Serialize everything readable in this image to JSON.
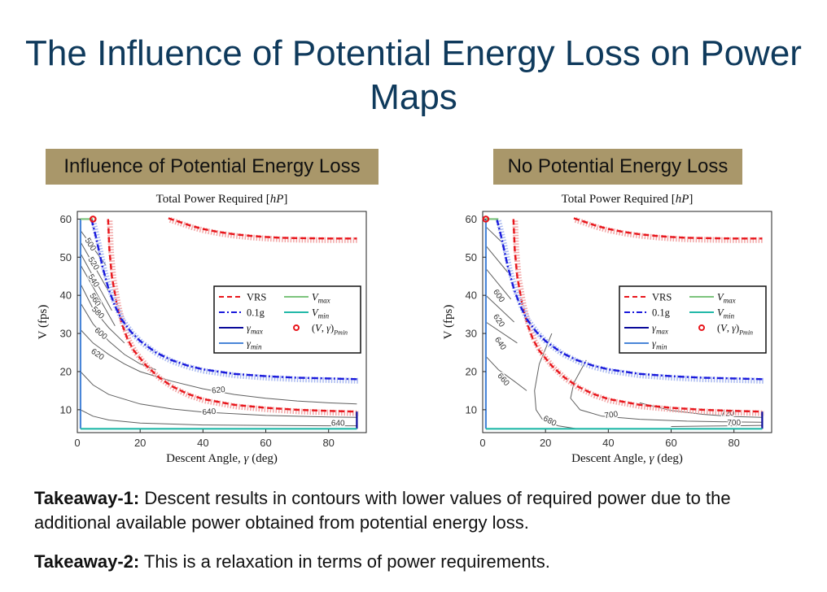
{
  "slide": {
    "title": "The Influence of Potential Energy Loss on Power Maps",
    "panel_headers": [
      "Influence of Potential Energy Loss",
      "No Potential Energy Loss"
    ],
    "header_color": "#a9976a",
    "title_color": "#0f3a5c"
  },
  "takeaways": [
    {
      "label": "Takeaway-1:",
      "text": " Descent results in contours with lower values of required power due to the additional available power obtained from potential energy loss."
    },
    {
      "label": "Takeaway-2:",
      "text": " This is a relaxation in terms of power requirements."
    }
  ],
  "chart_data": [
    {
      "type": "line",
      "title": "Total Power Required [hP]",
      "xlabel": "Descent Angle, γ (deg)",
      "ylabel": "V (fps)",
      "xlim": [
        0,
        92
      ],
      "ylim": [
        4,
        62
      ],
      "xticks": [
        0,
        20,
        40,
        60,
        80
      ],
      "yticks": [
        10,
        20,
        30,
        40,
        50,
        60
      ],
      "legend_position": "right",
      "legend": [
        "VRS",
        "Vmax",
        "0.1g",
        "Vmin",
        "γmax",
        "(V,γ)Pmin",
        "γmin"
      ],
      "colors": {
        "vrs": "#e8161c",
        "g01": "#1a1adc",
        "gamma_max": "#0a0a9a",
        "gamma_min": "#4a86d8",
        "vmax": "#7cc47c",
        "vmin": "#22b8a8",
        "contour": "#606060",
        "pmin": "#e8161c"
      },
      "series": [
        {
          "name": "VRS",
          "x": [
            9.8,
            10.2,
            11,
            12.5,
            14,
            16,
            18,
            22,
            26,
            30,
            35,
            40,
            50,
            60,
            70,
            80,
            89
          ],
          "y": [
            60,
            52,
            45,
            38,
            33,
            28.5,
            25.5,
            21.5,
            18.5,
            16.2,
            14.2,
            12.8,
            11.3,
            10.5,
            10,
            9.7,
            9.5
          ]
        },
        {
          "name": "VRS",
          "x": [
            29,
            32,
            36,
            40,
            45,
            50,
            55,
            60,
            65,
            70,
            80,
            89
          ],
          "y": [
            60.2,
            59.4,
            58.3,
            57.4,
            56.6,
            56,
            55.6,
            55.3,
            55.1,
            55,
            54.9,
            54.9
          ]
        },
        {
          "name": "0.1g",
          "x": [
            4.5,
            6,
            8,
            10,
            12,
            14,
            17,
            20,
            25,
            30,
            35,
            40,
            50,
            60,
            70,
            80,
            89
          ],
          "y": [
            60,
            55,
            47.5,
            41.5,
            37.2,
            33.8,
            30.5,
            28,
            25,
            23,
            21.6,
            20.6,
            19.4,
            18.8,
            18.4,
            18.2,
            18
          ]
        },
        {
          "name": "γmax",
          "x": [
            89,
            89
          ],
          "y": [
            5,
            9.5
          ]
        },
        {
          "name": "γmin",
          "x": [
            1,
            1
          ],
          "y": [
            5,
            60
          ]
        },
        {
          "name": "Vmax",
          "x": [
            1,
            5
          ],
          "y": [
            60,
            60
          ]
        },
        {
          "name": "Vmin",
          "x": [
            1,
            89
          ],
          "y": [
            5,
            5
          ]
        },
        {
          "name": "(V,γ)Pmin",
          "x": [
            5
          ],
          "y": [
            60
          ]
        }
      ],
      "contours": [
        {
          "label": "500",
          "x": [
            1,
            9
          ],
          "y": [
            57,
            48
          ]
        },
        {
          "label": "520",
          "x": [
            1,
            10
          ],
          "y": [
            54,
            41
          ]
        },
        {
          "label": "540",
          "x": [
            1,
            11
          ],
          "y": [
            51,
            36
          ]
        },
        {
          "label": "560",
          "x": [
            1,
            12
          ],
          "y": [
            48,
            32
          ]
        },
        {
          "label": "580",
          "x": [
            1,
            5,
            10,
            15
          ],
          "y": [
            43,
            36.5,
            31.5,
            27.5
          ]
        },
        {
          "label": "600",
          "x": [
            1,
            5,
            10,
            15,
            20,
            25
          ],
          "y": [
            38,
            32.5,
            28,
            24.5,
            22,
            20.5
          ]
        },
        {
          "label": "620",
          "x": [
            1,
            5,
            10,
            15,
            20,
            30,
            40,
            50,
            60,
            70,
            80,
            89
          ],
          "y": [
            31,
            27.5,
            24.5,
            22,
            20,
            17.5,
            15.5,
            14,
            13,
            12.3,
            11.8,
            11.5
          ]
        },
        {
          "label": "640",
          "x": [
            1,
            5,
            10,
            20,
            30,
            40,
            60,
            80,
            89
          ],
          "y": [
            20,
            16.5,
            14,
            11.5,
            10.2,
            9.4,
            8.5,
            8.1,
            8
          ]
        },
        {
          "label": "640",
          "x": [
            1,
            5,
            10,
            20,
            40,
            60,
            80,
            89
          ],
          "y": [
            10,
            8.3,
            7.3,
            6.5,
            6,
            5.9,
            5.8,
            5.8
          ]
        }
      ],
      "contour_labels": [
        {
          "text": "500",
          "x": 3.5,
          "y": 53,
          "angle": 58
        },
        {
          "text": "520",
          "x": 4.5,
          "y": 48,
          "angle": 58
        },
        {
          "text": "540",
          "x": 4.5,
          "y": 43.5,
          "angle": 58
        },
        {
          "text": "560",
          "x": 5,
          "y": 38.5,
          "angle": 58
        },
        {
          "text": "580",
          "x": 6,
          "y": 35,
          "angle": 45
        },
        {
          "text": "600",
          "x": 7,
          "y": 29.5,
          "angle": 40
        },
        {
          "text": "620",
          "x": 6,
          "y": 24,
          "angle": 35
        },
        {
          "text": "620",
          "x": 45,
          "y": 14.5,
          "angle": -6
        },
        {
          "text": "640",
          "x": 42,
          "y": 8.8,
          "angle": -4
        },
        {
          "text": "640",
          "x": 83,
          "y": 5.8,
          "angle": 0
        }
      ]
    },
    {
      "type": "line",
      "title": "Total Power Required [hP]",
      "xlabel": "Descent Angle, γ (deg)",
      "ylabel": "V (fps)",
      "xlim": [
        0,
        92
      ],
      "ylim": [
        4,
        62
      ],
      "xticks": [
        0,
        20,
        40,
        60,
        80
      ],
      "yticks": [
        10,
        20,
        30,
        40,
        50,
        60
      ],
      "legend_position": "right",
      "legend": [
        "VRS",
        "Vmax",
        "0.1g",
        "Vmin",
        "γmax",
        "(V,γ)Pmin",
        "γmin"
      ],
      "colors": {
        "vrs": "#e8161c",
        "g01": "#1a1adc",
        "gamma_max": "#0a0a9a",
        "gamma_min": "#4a86d8",
        "vmax": "#7cc47c",
        "vmin": "#22b8a8",
        "contour": "#606060",
        "pmin": "#e8161c"
      },
      "series": [
        {
          "name": "VRS",
          "x": [
            9.8,
            10.2,
            11,
            12.5,
            14,
            16,
            18,
            22,
            26,
            30,
            35,
            40,
            50,
            60,
            70,
            80,
            89
          ],
          "y": [
            60,
            52,
            45,
            38,
            33,
            28.5,
            25.5,
            21.5,
            18.5,
            16.2,
            14.2,
            12.8,
            11.3,
            10.5,
            10,
            9.7,
            9.5
          ]
        },
        {
          "name": "VRS",
          "x": [
            29,
            32,
            36,
            40,
            45,
            50,
            55,
            60,
            65,
            70,
            80,
            89
          ],
          "y": [
            60.2,
            59.4,
            58.3,
            57.4,
            56.6,
            56,
            55.6,
            55.3,
            55.1,
            55,
            54.9,
            54.9
          ]
        },
        {
          "name": "0.1g",
          "x": [
            4.5,
            6,
            8,
            10,
            12,
            14,
            17,
            20,
            25,
            30,
            35,
            40,
            50,
            60,
            70,
            80,
            89
          ],
          "y": [
            60,
            55,
            47.5,
            41.5,
            37.2,
            33.8,
            30.5,
            28,
            25,
            23,
            21.6,
            20.6,
            19.4,
            18.8,
            18.4,
            18.2,
            18
          ]
        },
        {
          "name": "γmax",
          "x": [
            89,
            89
          ],
          "y": [
            5,
            9.5
          ]
        },
        {
          "name": "γmin",
          "x": [
            1,
            1
          ],
          "y": [
            5,
            60
          ]
        },
        {
          "name": "Vmax",
          "x": [
            1,
            5
          ],
          "y": [
            60,
            60
          ]
        },
        {
          "name": "Vmin",
          "x": [
            1,
            89
          ],
          "y": [
            5,
            5
          ]
        },
        {
          "name": "(V,γ)Pmin",
          "x": [
            1
          ],
          "y": [
            60
          ]
        }
      ],
      "contours": [
        {
          "x": [
            1,
            6
          ],
          "y": [
            58,
            54
          ]
        },
        {
          "x": [
            1,
            8
          ],
          "y": [
            53,
            46
          ]
        },
        {
          "label": "600",
          "x": [
            1,
            9
          ],
          "y": [
            47,
            39
          ]
        },
        {
          "label": "620",
          "x": [
            1,
            10
          ],
          "y": [
            40,
            33
          ]
        },
        {
          "label": "640",
          "x": [
            1,
            11
          ],
          "y": [
            33,
            27.5
          ]
        },
        {
          "label": "660",
          "x": [
            1,
            5,
            10,
            14
          ],
          "y": [
            24,
            20.5,
            17.5,
            15
          ]
        },
        {
          "label": "680",
          "x": [
            22,
            18,
            16.5,
            17,
            19,
            24,
            30
          ],
          "y": [
            30,
            22,
            15,
            10,
            7.5,
            5.8,
            5
          ]
        },
        {
          "label": "700",
          "x": [
            33,
            29,
            28,
            31,
            38,
            50,
            65,
            80,
            89
          ],
          "y": [
            23,
            17,
            13,
            10,
            8.3,
            7.5,
            7,
            6.8,
            6.7
          ]
        },
        {
          "label": "720",
          "x": [
            50,
            60,
            70,
            80,
            89
          ],
          "y": [
            11.8,
            9.8,
            8.8,
            8.2,
            8
          ]
        },
        {
          "label": "700",
          "x": [
            60,
            70,
            80,
            89
          ],
          "y": [
            5.6,
            5.7,
            5.8,
            5.9
          ]
        }
      ],
      "contour_labels": [
        {
          "text": "600",
          "x": 4.5,
          "y": 39.5,
          "angle": 55
        },
        {
          "text": "620",
          "x": 4.5,
          "y": 33,
          "angle": 55
        },
        {
          "text": "640",
          "x": 5,
          "y": 27,
          "angle": 55
        },
        {
          "text": "660",
          "x": 6,
          "y": 17.5,
          "angle": 50
        },
        {
          "text": "680",
          "x": 21,
          "y": 6.5,
          "angle": 28
        },
        {
          "text": "700",
          "x": 41,
          "y": 8,
          "angle": -8
        },
        {
          "text": "720",
          "x": 78,
          "y": 8.4,
          "angle": -2
        },
        {
          "text": "700",
          "x": 80,
          "y": 5.9,
          "angle": 0
        }
      ]
    }
  ]
}
